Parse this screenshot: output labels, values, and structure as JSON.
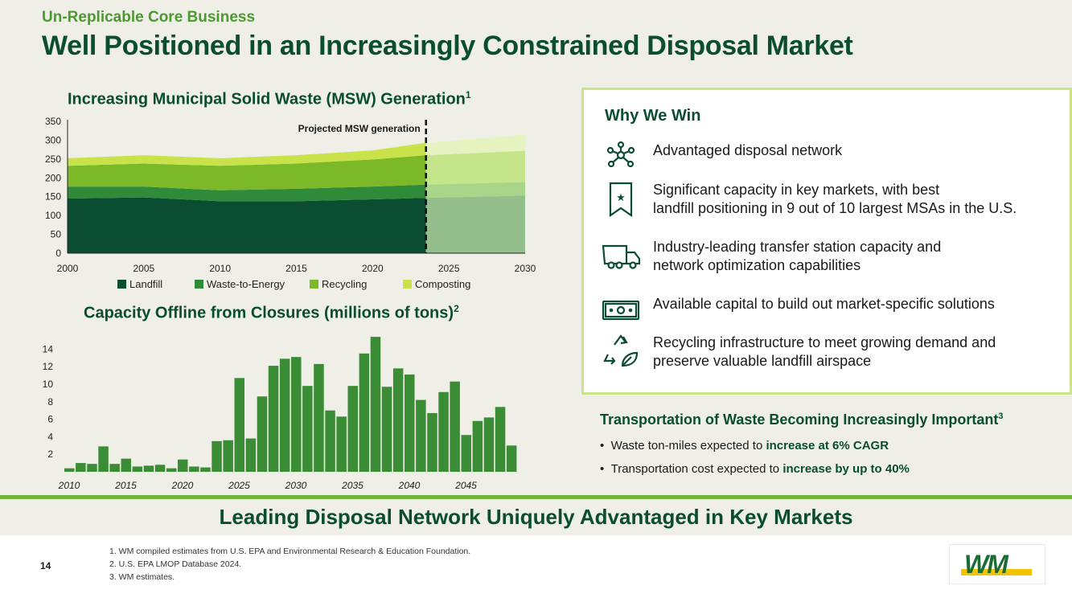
{
  "header": {
    "kicker": "Un-Replicable Core Business",
    "title": "Well Positioned in an Increasingly Constrained Disposal Market"
  },
  "colors": {
    "dark_green": "#0a4d31",
    "landfill": "#0b4d31",
    "waste_to_energy": "#2f8a3a",
    "recycling": "#7bb928",
    "composting": "#c9e24a",
    "bar": "#3a8d35",
    "accent": "#6fb33f"
  },
  "chart_data": [
    {
      "type": "area",
      "title": "Increasing Municipal Solid Waste (MSW) Generation",
      "title_footnote": "1",
      "x": [
        2000,
        2005,
        2010,
        2015,
        2020,
        2023.5,
        2030
      ],
      "x_ticks": [
        "2000",
        "2005",
        "2010",
        "2015",
        "2020",
        "2025",
        "2030"
      ],
      "x_tick_values": [
        2000,
        2005,
        2010,
        2015,
        2020,
        2025,
        2030
      ],
      "y_ticks": [
        "0",
        "50",
        "100",
        "150",
        "200",
        "250",
        "300",
        "350"
      ],
      "ylim": [
        0,
        350
      ],
      "xlim": [
        2000,
        2030
      ],
      "projection_start": 2023.5,
      "projection_label": "Projected MSW generation",
      "stacked": true,
      "series": [
        {
          "name": "Landfill",
          "values": [
            145,
            148,
            138,
            138,
            143,
            147,
            153
          ]
        },
        {
          "name": "Waste-to-Energy",
          "values": [
            32,
            29,
            29,
            33,
            34,
            35,
            36
          ]
        },
        {
          "name": "Recycling",
          "values": [
            55,
            61,
            65,
            67,
            72,
            78,
            83
          ]
        },
        {
          "name": "Composting",
          "values": [
            20,
            22,
            20,
            22,
            24,
            33,
            43
          ]
        }
      ],
      "legend": [
        "Landfill",
        "Waste-to-Energy",
        "Recycling",
        "Composting"
      ]
    },
    {
      "type": "bar",
      "title": "Capacity Offline from Closures (millions of tons)",
      "title_footnote": "2",
      "x_ticks": [
        "2010",
        "2015",
        "2020",
        "2025",
        "2030",
        "2035",
        "2040",
        "2045"
      ],
      "x_tick_values": [
        2010,
        2015,
        2020,
        2025,
        2030,
        2035,
        2040,
        2045
      ],
      "y_ticks": [
        "2",
        "4",
        "6",
        "8",
        "10",
        "12",
        "14"
      ],
      "y_tick_values": [
        2,
        4,
        6,
        8,
        10,
        12,
        14
      ],
      "ylim": [
        0,
        15.5
      ],
      "categories": [
        2010,
        2011,
        2012,
        2013,
        2014,
        2015,
        2016,
        2017,
        2018,
        2019,
        2020,
        2021,
        2022,
        2023,
        2024,
        2025,
        2026,
        2027,
        2028,
        2029,
        2030,
        2031,
        2032,
        2033,
        2034,
        2035,
        2036,
        2037,
        2038,
        2039,
        2040,
        2041,
        2042,
        2043,
        2044,
        2045,
        2046,
        2047,
        2048,
        2049
      ],
      "values": [
        0.4,
        1.0,
        0.9,
        2.9,
        0.9,
        1.5,
        0.6,
        0.7,
        0.8,
        0.4,
        1.4,
        0.6,
        0.5,
        3.5,
        3.6,
        10.7,
        3.8,
        8.6,
        12.1,
        12.9,
        13.1,
        9.8,
        12.3,
        7.0,
        6.3,
        9.8,
        13.5,
        15.4,
        9.7,
        11.8,
        11.1,
        8.2,
        6.7,
        9.1,
        10.3,
        4.2,
        5.8,
        6.2,
        7.4,
        3.0
      ]
    }
  ],
  "why_we_win": {
    "title": "Why We Win",
    "items": [
      {
        "icon": "network-icon",
        "lines": [
          "Advantaged disposal network"
        ]
      },
      {
        "icon": "bookmark-star-icon",
        "lines": [
          "Significant capacity in key markets, with best",
          "landfill positioning in 9 out of 10 largest MSAs in the U.S."
        ]
      },
      {
        "icon": "truck-icon",
        "lines": [
          "Industry-leading transfer station capacity and",
          "network optimization capabilities"
        ]
      },
      {
        "icon": "cash-icon",
        "lines": [
          "Available capital to build out market-specific solutions"
        ]
      },
      {
        "icon": "recycle-leaf-icon",
        "lines": [
          "Recycling infrastructure to meet growing demand and",
          "preserve valuable landfill airspace"
        ]
      }
    ]
  },
  "transport": {
    "title": "Transportation of Waste Becoming Increasingly Important",
    "title_footnote": "3",
    "bullets": [
      {
        "text": "Waste ton-miles expected to ",
        "bold": "increase at 6% CAGR"
      },
      {
        "text": "Transportation cost expected to ",
        "bold": "increase by up to 40%"
      }
    ]
  },
  "banner": "Leading Disposal Network Uniquely Advantaged in Key Markets",
  "footer": {
    "page_number": "14",
    "footnotes": [
      "1. WM compiled estimates from U.S. EPA and Environmental Research & Education Foundation.",
      "2. U.S. EPA LMOP Database 2024.",
      "3. WM estimates."
    ],
    "logo_text": "WM"
  }
}
